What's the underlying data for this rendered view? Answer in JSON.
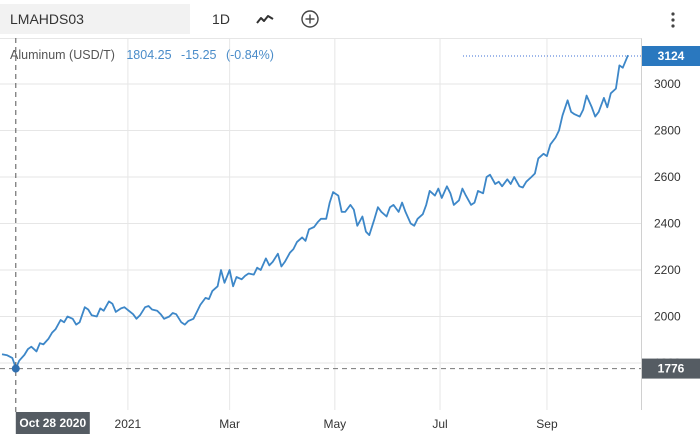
{
  "toolbar": {
    "symbol": "LMAHDS03",
    "period": "1D",
    "chart_type_icon": "line-chart-icon",
    "add_icon": "plus-circle-icon",
    "menu_icon": "vertical-dots-icon"
  },
  "legend": {
    "name": "Aluminum (USD/T)",
    "price": "1804.25",
    "change": "-15.25",
    "change_pct": "(-0.84%)"
  },
  "colors": {
    "line": "#3d87c8",
    "last_price_badge": "#2a78bf",
    "crosshair_badge": "#555c63"
  },
  "chart_data": {
    "type": "line",
    "title": "Aluminum (USD/T)",
    "ylim": [
      1700,
      3150
    ],
    "yticks": [
      1800,
      2000,
      2200,
      2400,
      2600,
      2800,
      3000
    ],
    "xticks": [
      {
        "label": "2021",
        "date": "2021-01-01"
      },
      {
        "label": "Mar",
        "date": "2021-03-01"
      },
      {
        "label": "May",
        "date": "2021-05-01"
      },
      {
        "label": "Jul",
        "date": "2021-07-01"
      },
      {
        "label": "Sep",
        "date": "2021-09-01"
      }
    ],
    "last_price": "3124",
    "crosshair": {
      "date": "2020-10-28",
      "date_label": "Oct 28 2020",
      "price_label": "1776"
    },
    "grid": true,
    "series": [
      {
        "points": [
          [
            "2020-10-20",
            1838
          ],
          [
            "2020-10-23",
            1833
          ],
          [
            "2020-10-26",
            1822
          ],
          [
            "2020-10-27",
            1800
          ],
          [
            "2020-10-28",
            1776
          ],
          [
            "2020-10-30",
            1810
          ],
          [
            "2020-11-02",
            1835
          ],
          [
            "2020-11-04",
            1860
          ],
          [
            "2020-11-06",
            1870
          ],
          [
            "2020-11-09",
            1850
          ],
          [
            "2020-11-11",
            1885
          ],
          [
            "2020-11-13",
            1880
          ],
          [
            "2020-11-16",
            1905
          ],
          [
            "2020-11-18",
            1930
          ],
          [
            "2020-11-20",
            1945
          ],
          [
            "2020-11-23",
            1985
          ],
          [
            "2020-11-25",
            1975
          ],
          [
            "2020-11-27",
            2000
          ],
          [
            "2020-11-30",
            1990
          ],
          [
            "2020-12-02",
            1965
          ],
          [
            "2020-12-04",
            1975
          ],
          [
            "2020-12-07",
            2040
          ],
          [
            "2020-12-09",
            2030
          ],
          [
            "2020-12-11",
            2005
          ],
          [
            "2020-12-14",
            2000
          ],
          [
            "2020-12-16",
            2035
          ],
          [
            "2020-12-18",
            2025
          ],
          [
            "2020-12-21",
            2065
          ],
          [
            "2020-12-23",
            2055
          ],
          [
            "2020-12-25",
            2020
          ],
          [
            "2020-12-28",
            2035
          ],
          [
            "2020-12-30",
            2040
          ],
          [
            "2021-01-04",
            2010
          ],
          [
            "2021-01-06",
            1990
          ],
          [
            "2021-01-08",
            2005
          ],
          [
            "2021-01-11",
            2040
          ],
          [
            "2021-01-13",
            2045
          ],
          [
            "2021-01-15",
            2030
          ],
          [
            "2021-01-18",
            2025
          ],
          [
            "2021-01-20",
            2010
          ],
          [
            "2021-01-22",
            1990
          ],
          [
            "2021-01-25",
            2000
          ],
          [
            "2021-01-27",
            2015
          ],
          [
            "2021-01-29",
            2010
          ],
          [
            "2021-02-01",
            1975
          ],
          [
            "2021-02-03",
            1965
          ],
          [
            "2021-02-05",
            1980
          ],
          [
            "2021-02-08",
            1990
          ],
          [
            "2021-02-10",
            2020
          ],
          [
            "2021-02-12",
            2050
          ],
          [
            "2021-02-15",
            2080
          ],
          [
            "2021-02-17",
            2075
          ],
          [
            "2021-02-19",
            2110
          ],
          [
            "2021-02-22",
            2130
          ],
          [
            "2021-02-24",
            2200
          ],
          [
            "2021-02-26",
            2145
          ],
          [
            "2021-03-01",
            2200
          ],
          [
            "2021-03-03",
            2130
          ],
          [
            "2021-03-05",
            2170
          ],
          [
            "2021-03-08",
            2160
          ],
          [
            "2021-03-10",
            2175
          ],
          [
            "2021-03-12",
            2185
          ],
          [
            "2021-03-15",
            2180
          ],
          [
            "2021-03-17",
            2210
          ],
          [
            "2021-03-19",
            2200
          ],
          [
            "2021-03-22",
            2250
          ],
          [
            "2021-03-24",
            2220
          ],
          [
            "2021-03-26",
            2235
          ],
          [
            "2021-03-29",
            2270
          ],
          [
            "2021-03-31",
            2215
          ],
          [
            "2021-04-02",
            2235
          ],
          [
            "2021-04-05",
            2275
          ],
          [
            "2021-04-07",
            2290
          ],
          [
            "2021-04-09",
            2320
          ],
          [
            "2021-04-12",
            2340
          ],
          [
            "2021-04-14",
            2325
          ],
          [
            "2021-04-16",
            2375
          ],
          [
            "2021-04-19",
            2385
          ],
          [
            "2021-04-21",
            2405
          ],
          [
            "2021-04-23",
            2420
          ],
          [
            "2021-04-26",
            2420
          ],
          [
            "2021-04-28",
            2490
          ],
          [
            "2021-04-30",
            2535
          ],
          [
            "2021-05-03",
            2520
          ],
          [
            "2021-05-05",
            2450
          ],
          [
            "2021-05-07",
            2450
          ],
          [
            "2021-05-10",
            2480
          ],
          [
            "2021-05-12",
            2460
          ],
          [
            "2021-05-14",
            2390
          ],
          [
            "2021-05-17",
            2430
          ],
          [
            "2021-05-19",
            2365
          ],
          [
            "2021-05-21",
            2350
          ],
          [
            "2021-05-24",
            2420
          ],
          [
            "2021-05-26",
            2470
          ],
          [
            "2021-05-28",
            2450
          ],
          [
            "2021-05-31",
            2430
          ],
          [
            "2021-06-02",
            2470
          ],
          [
            "2021-06-04",
            2480
          ],
          [
            "2021-06-07",
            2450
          ],
          [
            "2021-06-09",
            2490
          ],
          [
            "2021-06-11",
            2450
          ],
          [
            "2021-06-14",
            2400
          ],
          [
            "2021-06-16",
            2390
          ],
          [
            "2021-06-18",
            2420
          ],
          [
            "2021-06-21",
            2440
          ],
          [
            "2021-06-23",
            2480
          ],
          [
            "2021-06-25",
            2540
          ],
          [
            "2021-06-28",
            2520
          ],
          [
            "2021-06-30",
            2550
          ],
          [
            "2021-07-02",
            2510
          ],
          [
            "2021-07-05",
            2560
          ],
          [
            "2021-07-07",
            2530
          ],
          [
            "2021-07-09",
            2480
          ],
          [
            "2021-07-12",
            2500
          ],
          [
            "2021-07-14",
            2550
          ],
          [
            "2021-07-16",
            2520
          ],
          [
            "2021-07-19",
            2480
          ],
          [
            "2021-07-21",
            2490
          ],
          [
            "2021-07-23",
            2540
          ],
          [
            "2021-07-26",
            2530
          ],
          [
            "2021-07-28",
            2600
          ],
          [
            "2021-07-30",
            2610
          ],
          [
            "2021-08-02",
            2570
          ],
          [
            "2021-08-04",
            2580
          ],
          [
            "2021-08-06",
            2560
          ],
          [
            "2021-08-09",
            2590
          ],
          [
            "2021-08-11",
            2570
          ],
          [
            "2021-08-13",
            2600
          ],
          [
            "2021-08-16",
            2560
          ],
          [
            "2021-08-18",
            2555
          ],
          [
            "2021-08-20",
            2580
          ],
          [
            "2021-08-23",
            2600
          ],
          [
            "2021-08-25",
            2615
          ],
          [
            "2021-08-27",
            2680
          ],
          [
            "2021-08-30",
            2700
          ],
          [
            "2021-09-01",
            2690
          ],
          [
            "2021-09-03",
            2740
          ],
          [
            "2021-09-06",
            2770
          ],
          [
            "2021-09-08",
            2800
          ],
          [
            "2021-09-10",
            2865
          ],
          [
            "2021-09-13",
            2930
          ],
          [
            "2021-09-15",
            2880
          ],
          [
            "2021-09-17",
            2870
          ],
          [
            "2021-09-20",
            2860
          ],
          [
            "2021-09-22",
            2890
          ],
          [
            "2021-09-24",
            2950
          ],
          [
            "2021-09-27",
            2900
          ],
          [
            "2021-09-29",
            2860
          ],
          [
            "2021-10-01",
            2880
          ],
          [
            "2021-10-04",
            2940
          ],
          [
            "2021-10-06",
            2900
          ],
          [
            "2021-10-08",
            2960
          ],
          [
            "2021-10-11",
            2980
          ],
          [
            "2021-10-13",
            3080
          ],
          [
            "2021-10-15",
            3070
          ],
          [
            "2021-10-18",
            3124
          ]
        ]
      }
    ]
  }
}
